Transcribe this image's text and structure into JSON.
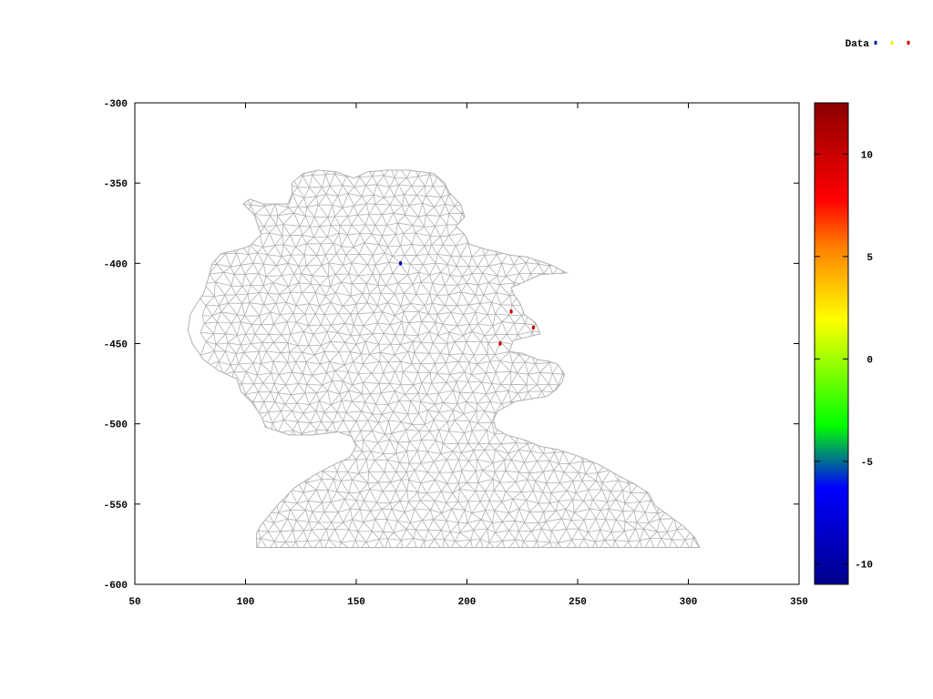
{
  "chart_data": {
    "type": "scatter",
    "legend": {
      "label": "Data",
      "placement": "top-right",
      "marker_colors": [
        "#0022aa",
        "#ffee00",
        "#cc0000"
      ]
    },
    "x_axis": {
      "range": [
        50,
        350
      ],
      "ticks": [
        50,
        100,
        150,
        200,
        250,
        300,
        350
      ],
      "tick_labels": [
        "50",
        "100",
        "150",
        "200",
        "250",
        "300",
        "350"
      ]
    },
    "y_axis": {
      "range": [
        -600,
        -300
      ],
      "ticks": [
        -300,
        -350,
        -400,
        -450,
        -500,
        -550,
        -600
      ],
      "tick_labels": [
        "-300",
        "-350",
        "-400",
        "-450",
        "-500",
        "-550",
        "-600"
      ]
    },
    "grid": false,
    "colorbar": {
      "range": [
        -11,
        12.5
      ],
      "ticks": [
        10,
        5,
        0,
        -5,
        -10
      ],
      "tick_labels": [
        "10",
        "5",
        "0",
        "-5",
        "-10"
      ],
      "colormap": [
        "#00008b",
        "#0000ff",
        "#00ff00",
        "#ffff00",
        "#ff8000",
        "#ff0000",
        "#8b0000"
      ]
    },
    "points": [
      {
        "x": 170,
        "y": -400,
        "value": -10,
        "color": "#0000aa"
      },
      {
        "x": 220,
        "y": -430,
        "value": 10,
        "color": "#cc0000"
      },
      {
        "x": 230,
        "y": -440,
        "value": 10,
        "color": "#cc0000"
      },
      {
        "x": 215,
        "y": -450,
        "value": 10,
        "color": "#cc0000"
      }
    ],
    "mesh": {
      "color": "#b0b0b0",
      "outline": [
        [
          109,
          -578
        ],
        [
          305,
          -578
        ],
        [
          291,
          -568
        ],
        [
          276,
          -552
        ],
        [
          265,
          -540
        ],
        [
          245,
          -531
        ],
        [
          226,
          -520
        ],
        [
          208,
          -516
        ],
        [
          203,
          -510
        ],
        [
          200,
          -502
        ],
        [
          190,
          -503
        ],
        [
          175,
          -503
        ],
        [
          146,
          -503
        ],
        [
          137,
          -510
        ],
        [
          130,
          -517
        ],
        [
          125,
          -521
        ],
        [
          119,
          -527
        ],
        [
          113,
          -534
        ],
        [
          108,
          -541
        ],
        [
          104,
          -547
        ],
        [
          100,
          -553
        ],
        [
          96,
          -558
        ],
        [
          92,
          -563
        ],
        [
          88,
          -568
        ],
        [
          109,
          -578
        ]
      ]
    }
  }
}
